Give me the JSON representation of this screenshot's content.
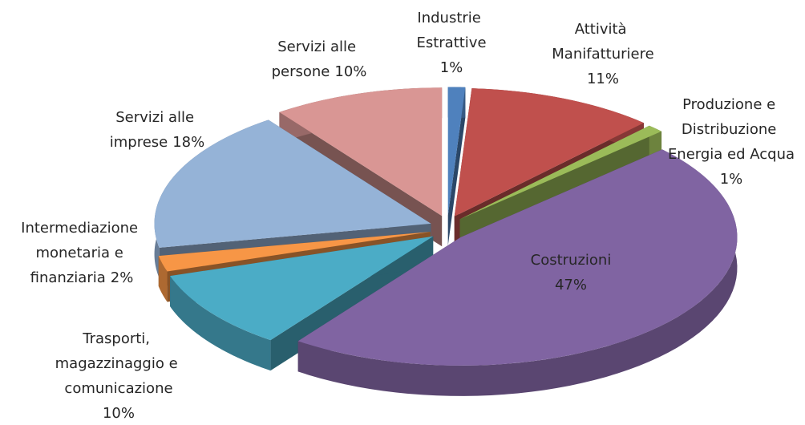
{
  "chart_data": {
    "type": "pie",
    "categories": [
      "Industrie Estrattive",
      "Attività Manifatturiere",
      "Produzione e Distribuzione Energia ed Acqua",
      "Costruzioni",
      "Trasporti, magazzinaggio e comunicazione",
      "Intermediazione monetaria e finanziaria",
      "Servizi alle imprese",
      "Servizi alle persone"
    ],
    "values": [
      1,
      11,
      1,
      47,
      10,
      2,
      18,
      10
    ],
    "value_labels": [
      "1%",
      "11%",
      "1%",
      "47%",
      "10%",
      "2%",
      "18%",
      "10%"
    ],
    "colors": [
      "#4f81bd",
      "#c0504d",
      "#9bbb59",
      "#8064a2",
      "#4bacc6",
      "#f79646",
      "#95b3d7",
      "#d99694"
    ]
  }
}
